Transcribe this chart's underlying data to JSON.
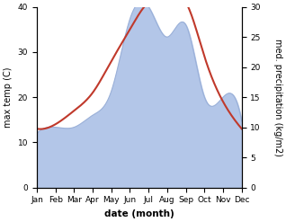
{
  "months": [
    "Jan",
    "Feb",
    "Mar",
    "Apr",
    "May",
    "Jun",
    "Jul",
    "Aug",
    "Sep",
    "Oct",
    "Nov",
    "Dec"
  ],
  "temperature": [
    13,
    14,
    17,
    21,
    28,
    35,
    41,
    42,
    41,
    29,
    19,
    13
  ],
  "precipitation": [
    9,
    10,
    10,
    12,
    16,
    28,
    30,
    25,
    27,
    15,
    15,
    11
  ],
  "temp_color": "#c0392b",
  "precip_fill_color": "#b3c6e8",
  "precip_line_color": "#9ab0d8",
  "ylim_left": [
    0,
    40
  ],
  "ylim_right": [
    0,
    30
  ],
  "yticks_left": [
    0,
    10,
    20,
    30,
    40
  ],
  "yticks_right": [
    0,
    5,
    10,
    15,
    20,
    25,
    30
  ],
  "xlabel": "date (month)",
  "ylabel_left": "max temp (C)",
  "ylabel_right": "med. precipitation (kg/m2)",
  "bg_color": "#ffffff",
  "figsize": [
    3.18,
    2.47
  ],
  "dpi": 100
}
